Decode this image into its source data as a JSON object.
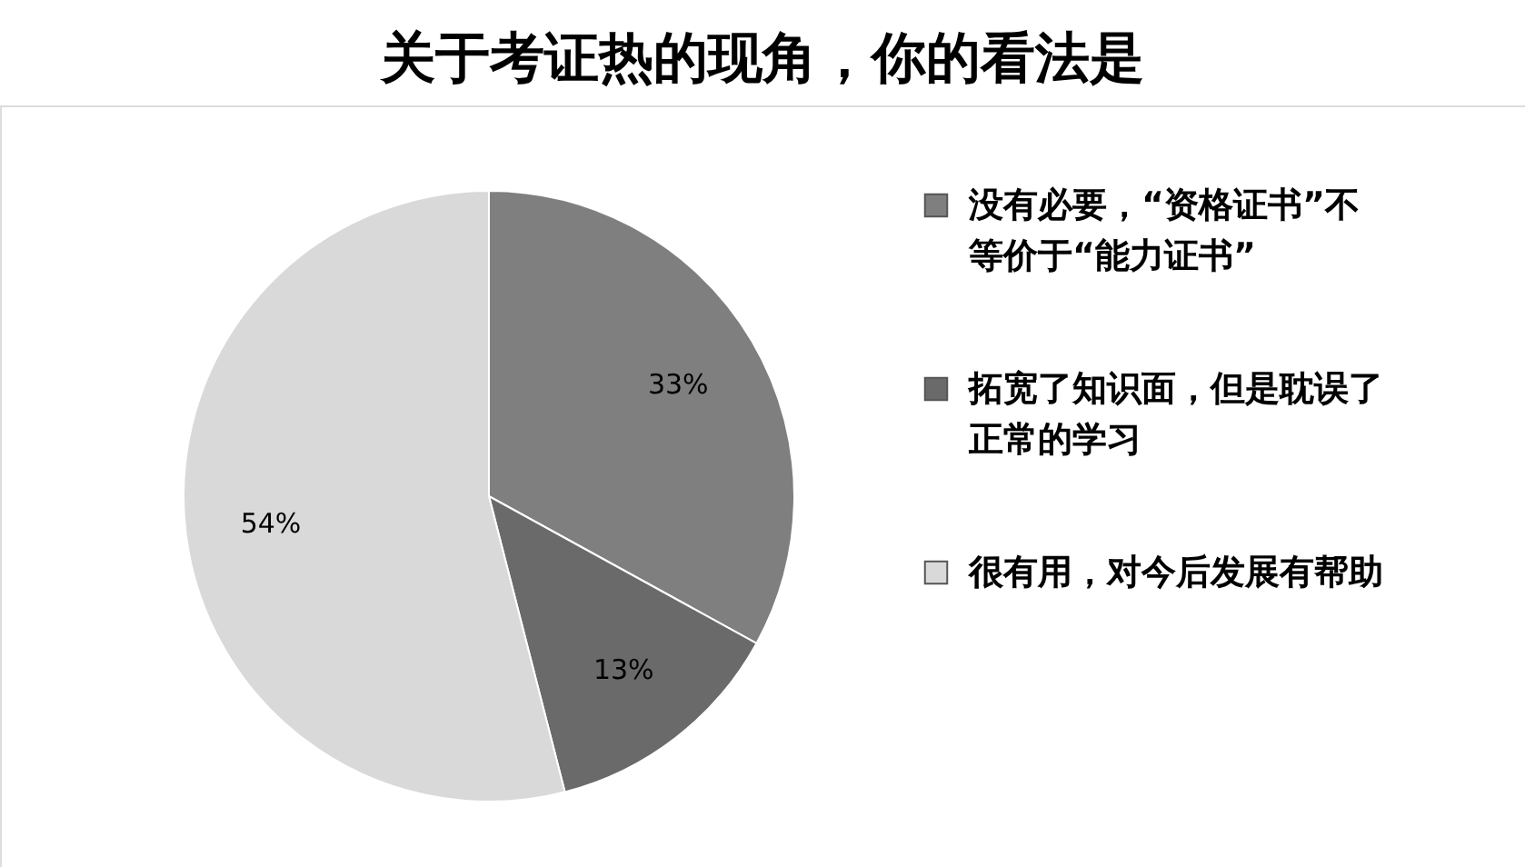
{
  "chart_data": {
    "type": "pie",
    "title": "关于考证热的现角，你的看法是",
    "categories": [
      "没有必要，“资格证书”不等价于“能力证书”",
      "拓宽了知识面，但是耽误了正常的学习",
      "很有用，对今后发展有帮助"
    ],
    "values": [
      33,
      13,
      54
    ],
    "value_labels": [
      "33%",
      "13%",
      "54%"
    ],
    "colors": [
      "#7f7f7f",
      "#6a6a6a",
      "#d9d9d9"
    ],
    "legend": "right"
  }
}
